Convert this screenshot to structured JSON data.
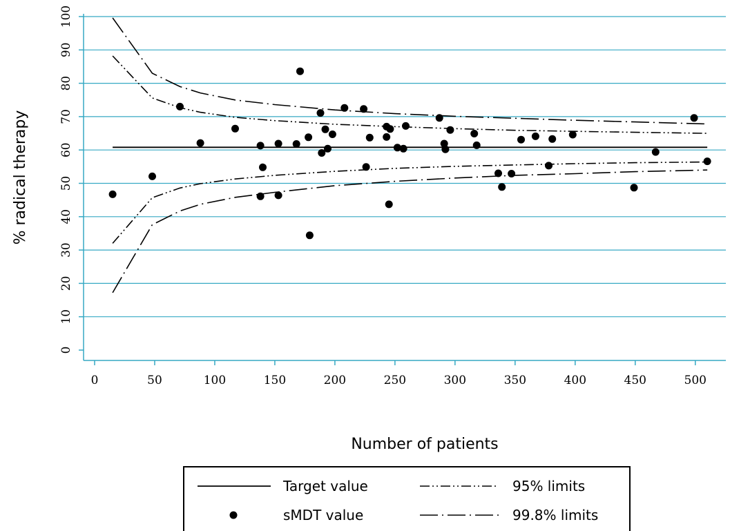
{
  "chart_data": {
    "type": "scatter",
    "title": "",
    "xlabel": "Number of patients",
    "ylabel": "% radical therapy",
    "xlim": [
      0,
      510
    ],
    "ylim": [
      0,
      100
    ],
    "x_ticks": [
      "0",
      "50",
      "100",
      "150",
      "200",
      "250",
      "300",
      "350",
      "400",
      "450",
      "500"
    ],
    "y_ticks": [
      "0",
      "10",
      "20",
      "30",
      "40",
      "50",
      "60",
      "70",
      "80",
      "90",
      "100"
    ],
    "grid": "horizontal",
    "grid_color": "#36a9c4",
    "legend_position": "bottom",
    "target_value": 60.8,
    "series": [
      {
        "name": "sMDT value",
        "style": "points",
        "points": [
          [
            15,
            46.7
          ],
          [
            48,
            52.1
          ],
          [
            71,
            73.0
          ],
          [
            88,
            62.1
          ],
          [
            117,
            66.4
          ],
          [
            138,
            61.3
          ],
          [
            138,
            46.1
          ],
          [
            140,
            54.8
          ],
          [
            153,
            61.9
          ],
          [
            153,
            46.4
          ],
          [
            168,
            61.8
          ],
          [
            171,
            83.6
          ],
          [
            178,
            63.8
          ],
          [
            179,
            34.4
          ],
          [
            188,
            71.1
          ],
          [
            189,
            59.1
          ],
          [
            192,
            66.2
          ],
          [
            194,
            60.4
          ],
          [
            198,
            64.7
          ],
          [
            208,
            72.6
          ],
          [
            224,
            72.3
          ],
          [
            226,
            54.9
          ],
          [
            229,
            63.7
          ],
          [
            243,
            67.0
          ],
          [
            243,
            63.9
          ],
          [
            245,
            43.7
          ],
          [
            246,
            66.3
          ],
          [
            252,
            60.7
          ],
          [
            257,
            60.4
          ],
          [
            259,
            67.2
          ],
          [
            287,
            69.6
          ],
          [
            291,
            61.9
          ],
          [
            292,
            60.2
          ],
          [
            296,
            66.0
          ],
          [
            316,
            64.9
          ],
          [
            318,
            61.4
          ],
          [
            336,
            53.0
          ],
          [
            339,
            48.9
          ],
          [
            347,
            52.9
          ],
          [
            355,
            63.1
          ],
          [
            367,
            64.1
          ],
          [
            378,
            55.3
          ],
          [
            381,
            63.3
          ],
          [
            398,
            64.6
          ],
          [
            449,
            48.7
          ],
          [
            467,
            59.4
          ],
          [
            499,
            69.6
          ],
          [
            510,
            56.6
          ]
        ]
      },
      {
        "name": "Target value",
        "style": "solid",
        "points": [
          [
            15,
            60.8
          ],
          [
            510,
            60.8
          ]
        ]
      },
      {
        "name": "95% limits",
        "style": "dash-dot-dot",
        "upper": [
          [
            15,
            88.2
          ],
          [
            48,
            75.6
          ],
          [
            71,
            72.7
          ],
          [
            88,
            71.3
          ],
          [
            117,
            69.8
          ],
          [
            150,
            68.8
          ],
          [
            200,
            67.7
          ],
          [
            250,
            67.0
          ],
          [
            300,
            66.4
          ],
          [
            350,
            65.9
          ],
          [
            400,
            65.6
          ],
          [
            450,
            65.3
          ],
          [
            510,
            65.0
          ]
        ],
        "lower": [
          [
            15,
            32.0
          ],
          [
            48,
            45.7
          ],
          [
            71,
            48.6
          ],
          [
            88,
            49.9
          ],
          [
            117,
            51.3
          ],
          [
            150,
            52.4
          ],
          [
            200,
            53.6
          ],
          [
            250,
            54.5
          ],
          [
            300,
            55.1
          ],
          [
            350,
            55.5
          ],
          [
            400,
            55.9
          ],
          [
            450,
            56.2
          ],
          [
            510,
            56.4
          ]
        ]
      },
      {
        "name": "99.8% limits",
        "style": "long-dash-dot",
        "upper": [
          [
            15,
            99.6
          ],
          [
            48,
            83.0
          ],
          [
            71,
            79.0
          ],
          [
            88,
            77.1
          ],
          [
            117,
            75.0
          ],
          [
            150,
            73.6
          ],
          [
            200,
            72.0
          ],
          [
            250,
            70.9
          ],
          [
            300,
            70.1
          ],
          [
            350,
            69.5
          ],
          [
            400,
            68.9
          ],
          [
            450,
            68.4
          ],
          [
            510,
            67.8
          ]
        ],
        "lower": [
          [
            15,
            17.2
          ],
          [
            48,
            37.6
          ],
          [
            71,
            41.7
          ],
          [
            88,
            43.7
          ],
          [
            117,
            45.8
          ],
          [
            150,
            47.3
          ],
          [
            200,
            49.3
          ],
          [
            250,
            50.6
          ],
          [
            300,
            51.6
          ],
          [
            350,
            52.4
          ],
          [
            400,
            52.9
          ],
          [
            450,
            53.5
          ],
          [
            510,
            54.0
          ]
        ]
      }
    ],
    "legend": {
      "target_label": "Target value",
      "smdt_label": "sMDT value",
      "limits95_label": "95% limits",
      "limits998_label": "99.8% limits"
    }
  }
}
